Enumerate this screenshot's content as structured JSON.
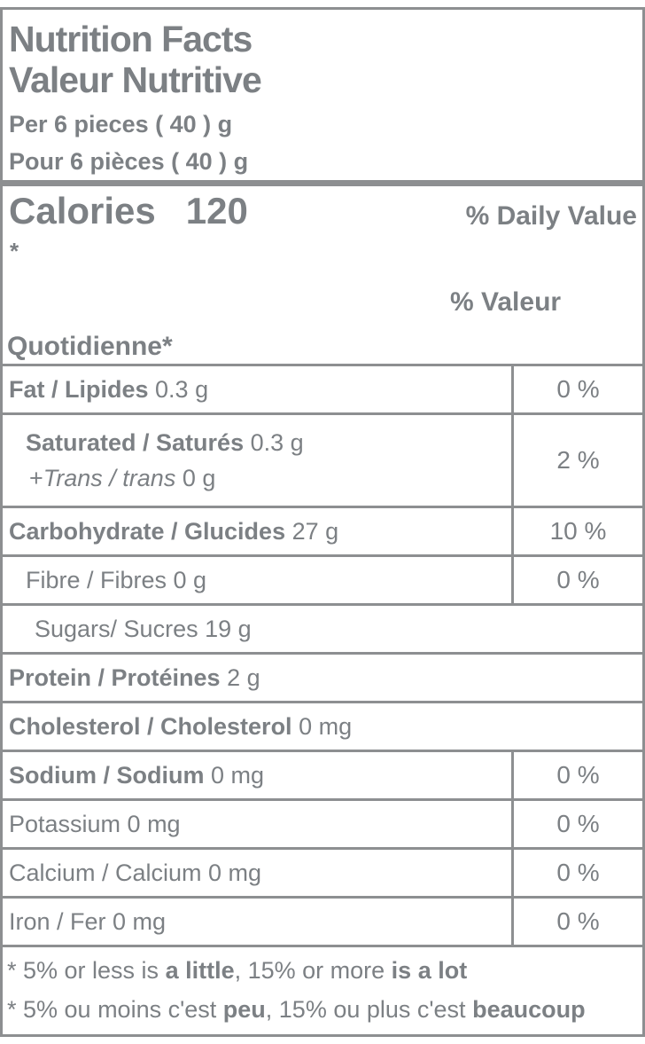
{
  "colors": {
    "text_gray": "#7c8084",
    "border_gray": "#8d8f91"
  },
  "header": {
    "title_en": "Nutrition Facts",
    "title_fr": "Valeur Nutritive",
    "serving_en": "Per 6 pieces ( 40 ) g",
    "serving_fr": "Pour 6 pièces ( 40 ) g"
  },
  "calories": {
    "label": "Calories",
    "value": "120",
    "dv_header_en": "% Daily Value",
    "dv_star": "*",
    "dv_header_fr_line1": "% Valeur",
    "dv_header_fr_line2": "Quotidienne*"
  },
  "table": {
    "rows": [
      {
        "bold": "Fat / Lipides",
        "rest": " 0.3 g",
        "dv": "0 %"
      },
      {
        "bold": "Saturated / Saturés",
        "rest": " 0.3 g",
        "sub_plus": "+",
        "sub_italic": "Trans / trans",
        "sub_rest": " 0 g",
        "dv": "2 %"
      },
      {
        "bold": "Carbohydrate / Glucides",
        "rest": " 27 g",
        "dv": "10 %"
      },
      {
        "plain": "Fibre / Fibres 0 g",
        "dv": "0 %"
      },
      {
        "plain": "Sugars/ Sucres 19 g"
      },
      {
        "bold": "Protein / Protéines",
        "rest": " 2 g"
      },
      {
        "bold": "Cholesterol / Cholesterol",
        "rest": " 0 mg"
      },
      {
        "bold": "Sodium / Sodium",
        "rest": " 0 mg",
        "dv": "0 %"
      },
      {
        "plain": "Potassium 0 mg",
        "dv": "0 %"
      },
      {
        "plain": "Calcium / Calcium 0 mg",
        "dv": "0 %"
      },
      {
        "plain": "Iron / Fer 0 mg",
        "dv": "0 %"
      }
    ]
  },
  "footnotes": {
    "en": [
      {
        "t": "* 5% or less is "
      },
      {
        "t": "a little"
      },
      {
        "t": ", 15% or more "
      },
      {
        "t": "is a lot"
      }
    ],
    "fr": [
      {
        "t": "* 5% ou moins c'est "
      },
      {
        "t": "peu"
      },
      {
        "t": ", 15% ou plus c'est "
      },
      {
        "t": "beaucoup"
      }
    ]
  }
}
